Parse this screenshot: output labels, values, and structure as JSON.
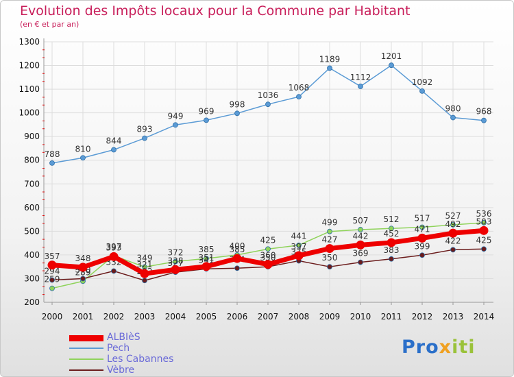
{
  "header": {
    "title": "Evolution des Impôts locaux pour la Commune par Habitant",
    "subtitle": "(en € et par an)"
  },
  "colors": {
    "title": "#c81e5a",
    "legend_text": "#6a6ad8",
    "grid": "#dddddd",
    "axis": "#999999",
    "tick_mark": "#e00000"
  },
  "legend": [
    {
      "name": "ALBIèS",
      "color": "#ee0000"
    },
    {
      "name": "Pech",
      "color": "#5b9bd5"
    },
    {
      "name": "Les Cabannes",
      "color": "#8fd35a"
    },
    {
      "name": "Vèbre",
      "color": "#6b1c1c"
    }
  ],
  "logo": {
    "part1": "Pro",
    "part2": "x",
    "part3": "iti",
    "icon_name": "proxiti-logo"
  },
  "chart_data": {
    "type": "line",
    "title": "Evolution des Impôts locaux pour la Commune par Habitant",
    "subtitle": "(en € et par an)",
    "xlabel": "",
    "ylabel": "",
    "ylim": [
      200,
      1300
    ],
    "yticks": [
      200,
      300,
      400,
      500,
      600,
      700,
      800,
      900,
      1000,
      1100,
      1200,
      1300
    ],
    "grid": true,
    "legend_position": "bottom-left",
    "x": [
      "2000",
      "2001",
      "2002",
      "2003",
      "2004",
      "2005",
      "2006",
      "2007",
      "2008",
      "2009",
      "2010",
      "2011",
      "2012",
      "2013",
      "2014"
    ],
    "series": [
      {
        "name": "ALBIèS",
        "color": "#ee0000",
        "values": [
          357,
          348,
          393,
          321,
          338,
          351,
          385,
          360,
          397,
          427,
          442,
          452,
          471,
          492,
          503
        ]
      },
      {
        "name": "Pech",
        "color": "#5b9bd5",
        "values": [
          788,
          810,
          844,
          893,
          949,
          969,
          998,
          1036,
          1068,
          1189,
          1112,
          1201,
          1092,
          980,
          968
        ]
      },
      {
        "name": "Les Cabannes",
        "color": "#8fd35a",
        "values": [
          259,
          289,
          397,
          349,
          372,
          385,
          400,
          425,
          441,
          499,
          507,
          512,
          517,
          527,
          536
        ]
      },
      {
        "name": "Vèbre",
        "color": "#6b1c1c",
        "values": [
          294,
          300,
          332,
          292,
          327,
          341,
          344,
          350,
          375,
          350,
          369,
          383,
          399,
          422,
          425
        ]
      }
    ]
  }
}
